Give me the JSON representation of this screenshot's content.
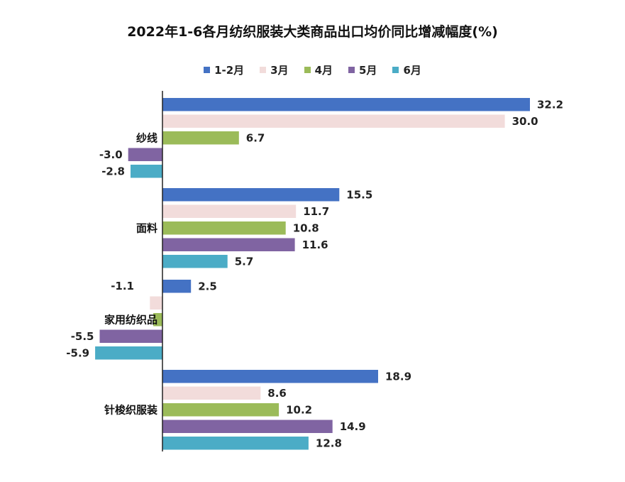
{
  "chart_data": {
    "type": "bar",
    "orientation": "horizontal",
    "title": "2022年1-6各月纺织服装大类商品出口均价同比增减幅度(%)",
    "categories": [
      "纱线",
      "面料",
      "家用纺织品",
      "针梭织服装"
    ],
    "series": [
      {
        "name": "1-2月",
        "color": "#4472C4",
        "values": [
          32.2,
          15.5,
          2.5,
          18.9
        ]
      },
      {
        "name": "3月",
        "color": "#F2DCDB",
        "values": [
          30.0,
          11.7,
          -1.1,
          8.6
        ]
      },
      {
        "name": "4月",
        "color": "#9BBB59",
        "values": [
          6.7,
          10.8,
          -0.8,
          10.2
        ]
      },
      {
        "name": "5月",
        "color": "#8064A2",
        "values": [
          -3.0,
          11.6,
          -5.5,
          14.9
        ]
      },
      {
        "name": "6月",
        "color": "#4BACC6",
        "values": [
          -2.8,
          5.7,
          -5.9,
          12.8
        ]
      }
    ],
    "value_labels": [
      [
        "32.2",
        "30.0",
        "6.7",
        "-3.0",
        "-2.8"
      ],
      [
        "15.5",
        "11.7",
        "10.8",
        "11.6",
        "5.7"
      ],
      [
        "2.5",
        "-1.1",
        "",
        "-5.5",
        "-5.9"
      ],
      [
        "18.9",
        "8.6",
        "10.2",
        "14.9",
        "12.8"
      ]
    ],
    "xlim": [
      -6.5,
      32.2
    ],
    "grid": false,
    "legend_position": "top"
  }
}
